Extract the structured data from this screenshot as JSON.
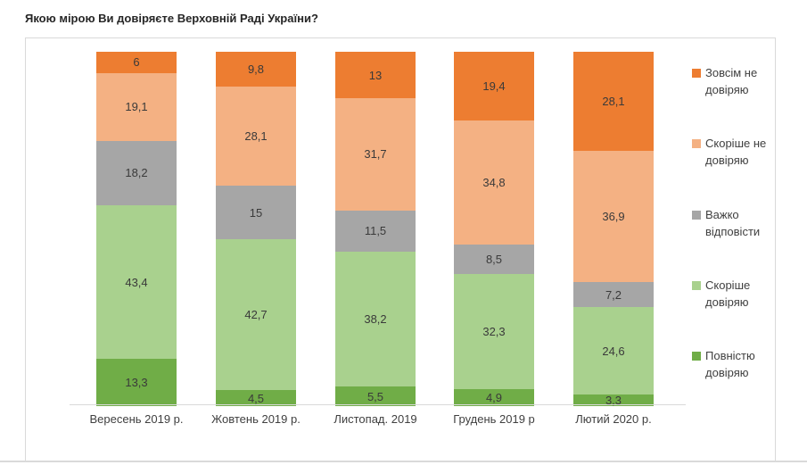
{
  "page": {
    "title": "Якою мірою Ви довіряєте Верховній Раді України?"
  },
  "chart_data": {
    "type": "stacked-bar",
    "title": "Якою мірою Ви довіряєте Верховній Раді України?",
    "categories": [
      "Вересень 2019 р.",
      "Жовтень 2019 р.",
      "Листопад. 2019",
      "Грудень 2019 р",
      "Лютий 2020 р."
    ],
    "series": [
      {
        "name": "Повністю довіряю",
        "color": "#70AD47",
        "values": [
          13.3,
          4.5,
          5.5,
          4.9,
          3.3
        ],
        "labels": [
          "13,3",
          "4,5",
          "5,5",
          "4,9",
          "3,3"
        ]
      },
      {
        "name": "Скоріше довіряю",
        "color": "#A9D18E",
        "values": [
          43.4,
          42.7,
          38.2,
          32.3,
          24.6
        ],
        "labels": [
          "43,4",
          "42,7",
          "38,2",
          "32,3",
          "24,6"
        ]
      },
      {
        "name": "Важко відповісти",
        "color": "#A6A6A6",
        "values": [
          18.2,
          15,
          11.5,
          8.5,
          7.2
        ],
        "labels": [
          "18,2",
          "15",
          "11,5",
          "8,5",
          "7,2"
        ]
      },
      {
        "name": "Скоріше не довіряю",
        "color": "#F4B183",
        "values": [
          19.1,
          28.1,
          31.7,
          34.8,
          36.9
        ],
        "labels": [
          "19,1",
          "28,1",
          "31,7",
          "34,8",
          "36,9"
        ]
      },
      {
        "name": "Зовсім не довіряю",
        "color": "#ED7D31",
        "values": [
          6,
          9.8,
          13,
          19.4,
          28.1
        ],
        "labels": [
          "6",
          "9,8",
          "13",
          "19,4",
          "28,1"
        ]
      }
    ],
    "legend": [
      {
        "line1": "Зовсім не",
        "line2": "довіряю",
        "color": "#ED7D31"
      },
      {
        "line1": "Скоріше  не",
        "line2": "довіряю",
        "color": "#F4B183"
      },
      {
        "line1": "Важко",
        "line2": "відповісти",
        "color": "#A6A6A6"
      },
      {
        "line1": "Скоріше",
        "line2": "довіряю",
        "color": "#A9D18E"
      },
      {
        "line1": "Повністю",
        "line2": "довіряю",
        "color": "#70AD47"
      }
    ],
    "ylim": [
      0,
      100
    ],
    "legend_position": "right",
    "grid": false,
    "value_decimal_separator": ","
  }
}
